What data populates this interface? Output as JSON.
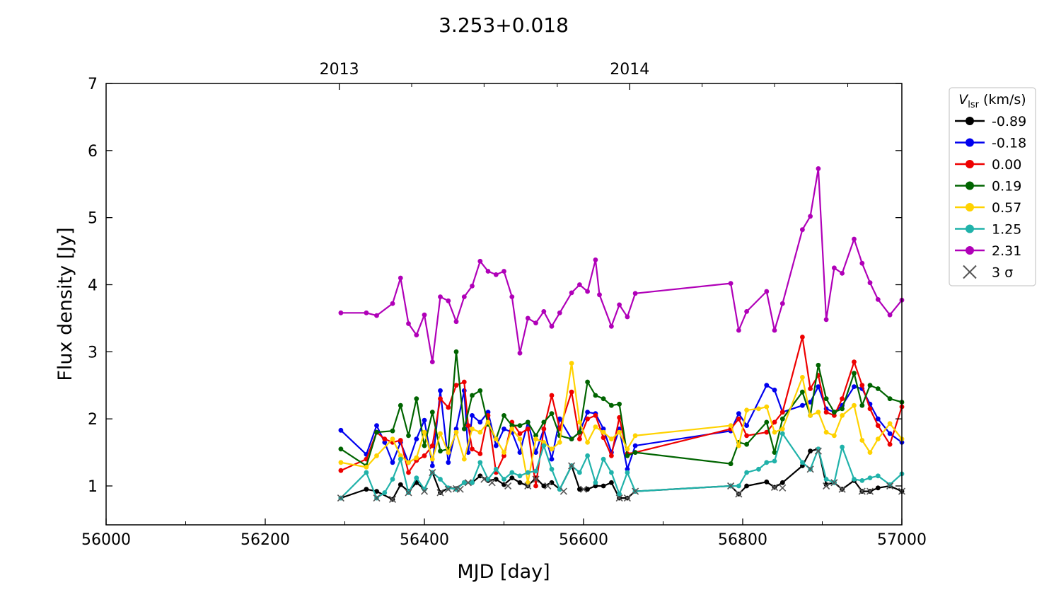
{
  "chart_data": {
    "type": "line",
    "title": "3.253+0.018",
    "xlabel": "MJD [day]",
    "ylabel": "Flux density [Jy]",
    "xlim": [
      56000,
      57000
    ],
    "ylim": [
      0.42,
      7
    ],
    "x_ticks": [
      56000,
      56200,
      56400,
      56600,
      56800,
      57000
    ],
    "y_ticks": [
      1,
      2,
      3,
      4,
      5,
      6,
      7
    ],
    "top_axis": {
      "ticks": [
        {
          "label": "2013",
          "x": 56293
        },
        {
          "label": "2014",
          "x": 56658
        }
      ]
    },
    "legend": {
      "title_main": "V",
      "title_sub": "lsr",
      "title_unit": " (km/s)",
      "position": "outside-right",
      "sigma_label": "3 σ"
    },
    "series": [
      {
        "name": "-0.89",
        "color": "#000000",
        "x": [
          56295,
          56327,
          56340,
          56360,
          56370,
          56380,
          56390,
          56400,
          56410,
          56420,
          56430,
          56440,
          56450,
          56460,
          56470,
          56480,
          56490,
          56500,
          56510,
          56520,
          56530,
          56540,
          56550,
          56560,
          56570,
          56585,
          56595,
          56605,
          56615,
          56625,
          56635,
          56645,
          56655,
          56665,
          56785,
          56795,
          56805,
          56830,
          56840,
          56850,
          56875,
          56885,
          56895,
          56905,
          56915,
          56925,
          56940,
          56950,
          56960,
          56970,
          56985,
          57000
        ],
        "y": [
          0.82,
          0.95,
          0.92,
          0.8,
          1.02,
          0.92,
          1.05,
          0.95,
          1.2,
          0.9,
          0.97,
          0.96,
          1.05,
          1.05,
          1.15,
          1.08,
          1.1,
          1.02,
          1.12,
          1.05,
          1.0,
          1.12,
          1.0,
          1.05,
          0.95,
          1.3,
          0.95,
          0.95,
          1.0,
          1.0,
          1.05,
          0.82,
          0.82,
          0.92,
          1.0,
          0.88,
          1.0,
          1.06,
          0.98,
          1.05,
          1.3,
          1.52,
          1.55,
          1.02,
          1.05,
          0.95,
          1.08,
          0.92,
          0.92,
          0.97,
          1.0,
          0.92
        ]
      },
      {
        "name": "-0.18",
        "color": "#0000ee",
        "x": [
          56295,
          56327,
          56340,
          56350,
          56360,
          56370,
          56380,
          56390,
          56400,
          56410,
          56420,
          56430,
          56440,
          56450,
          56455,
          56460,
          56470,
          56480,
          56490,
          56500,
          56510,
          56520,
          56530,
          56540,
          56550,
          56560,
          56570,
          56585,
          56595,
          56605,
          56615,
          56625,
          56635,
          56645,
          56655,
          56665,
          56785,
          56795,
          56805,
          56830,
          56840,
          56850,
          56875,
          56885,
          56895,
          56905,
          56915,
          56925,
          56940,
          56950,
          56960,
          56970,
          56985,
          57000
        ],
        "y": [
          1.83,
          1.47,
          1.9,
          1.65,
          1.35,
          1.65,
          1.35,
          1.7,
          1.98,
          1.3,
          2.42,
          1.35,
          1.85,
          2.42,
          1.5,
          2.05,
          1.95,
          2.1,
          1.6,
          1.85,
          1.8,
          1.5,
          1.95,
          1.5,
          1.85,
          1.4,
          2.0,
          1.7,
          1.8,
          2.1,
          2.08,
          1.85,
          1.5,
          1.85,
          1.25,
          1.6,
          1.82,
          2.08,
          1.9,
          2.5,
          2.43,
          2.1,
          2.2,
          2.25,
          2.48,
          2.15,
          2.1,
          2.2,
          2.48,
          2.45,
          2.22,
          2.0,
          1.78,
          1.65
        ]
      },
      {
        "name": "0.00",
        "color": "#ee0000",
        "x": [
          56295,
          56327,
          56340,
          56350,
          56360,
          56370,
          56380,
          56390,
          56400,
          56410,
          56420,
          56430,
          56440,
          56450,
          56455,
          56460,
          56470,
          56480,
          56490,
          56500,
          56510,
          56520,
          56530,
          56540,
          56550,
          56560,
          56570,
          56585,
          56595,
          56605,
          56615,
          56625,
          56635,
          56645,
          56655,
          56665,
          56785,
          56795,
          56805,
          56830,
          56840,
          56850,
          56875,
          56885,
          56895,
          56905,
          56915,
          56925,
          56940,
          56950,
          56960,
          56970,
          56985,
          57000
        ],
        "y": [
          1.23,
          1.4,
          1.8,
          1.7,
          1.65,
          1.68,
          1.2,
          1.38,
          1.45,
          1.6,
          2.3,
          2.17,
          2.5,
          2.55,
          1.9,
          1.55,
          1.48,
          2.05,
          1.2,
          1.45,
          1.95,
          1.78,
          1.85,
          1.0,
          1.85,
          2.35,
          1.85,
          2.4,
          1.7,
          2.0,
          2.05,
          1.72,
          1.45,
          2.02,
          1.48,
          1.5,
          1.85,
          2.0,
          1.75,
          1.8,
          1.95,
          2.1,
          3.22,
          2.45,
          2.65,
          2.1,
          2.05,
          2.3,
          2.85,
          2.5,
          2.15,
          1.9,
          1.62,
          2.18
        ]
      },
      {
        "name": "0.19",
        "color": "#006400",
        "x": [
          56295,
          56327,
          56340,
          56360,
          56370,
          56380,
          56390,
          56400,
          56410,
          56420,
          56430,
          56440,
          56450,
          56460,
          56470,
          56480,
          56490,
          56500,
          56510,
          56520,
          56530,
          56540,
          56550,
          56560,
          56570,
          56585,
          56595,
          56605,
          56615,
          56625,
          56635,
          56645,
          56655,
          56665,
          56785,
          56795,
          56805,
          56830,
          56840,
          56850,
          56875,
          56885,
          56895,
          56905,
          56915,
          56925,
          56940,
          56950,
          56960,
          56970,
          56985,
          57000
        ],
        "y": [
          1.55,
          1.3,
          1.8,
          1.82,
          2.2,
          1.75,
          2.3,
          1.6,
          2.1,
          1.52,
          1.55,
          3.0,
          1.85,
          2.35,
          2.42,
          1.92,
          1.7,
          2.05,
          1.9,
          1.9,
          1.95,
          1.75,
          1.95,
          2.08,
          1.75,
          1.7,
          1.8,
          2.55,
          2.35,
          2.3,
          2.2,
          2.22,
          1.45,
          1.5,
          1.33,
          1.65,
          1.62,
          1.95,
          1.5,
          2.0,
          2.4,
          2.05,
          2.8,
          2.3,
          2.1,
          2.15,
          2.68,
          2.2,
          2.5,
          2.45,
          2.3,
          2.25
        ]
      },
      {
        "name": "0.57",
        "color": "#ffd200",
        "x": [
          56295,
          56327,
          56340,
          56360,
          56370,
          56380,
          56390,
          56400,
          56410,
          56420,
          56430,
          56440,
          56450,
          56460,
          56470,
          56480,
          56490,
          56500,
          56510,
          56520,
          56530,
          56540,
          56550,
          56560,
          56570,
          56585,
          56595,
          56605,
          56615,
          56625,
          56635,
          56645,
          56655,
          56665,
          56785,
          56795,
          56805,
          56820,
          56830,
          56840,
          56850,
          56875,
          56885,
          56895,
          56905,
          56915,
          56925,
          56940,
          56950,
          56960,
          56970,
          56985,
          57000
        ],
        "y": [
          1.35,
          1.28,
          1.45,
          1.7,
          1.45,
          1.35,
          1.42,
          1.8,
          1.4,
          1.78,
          1.5,
          1.8,
          1.4,
          1.85,
          1.8,
          1.95,
          1.7,
          1.5,
          1.85,
          1.7,
          1.05,
          1.7,
          1.65,
          1.55,
          1.65,
          2.83,
          1.95,
          1.65,
          1.88,
          1.8,
          1.7,
          1.8,
          1.55,
          1.75,
          1.9,
          1.6,
          2.13,
          2.15,
          2.18,
          1.8,
          1.85,
          2.62,
          2.05,
          2.1,
          1.8,
          1.75,
          2.05,
          2.2,
          1.68,
          1.5,
          1.7,
          1.93,
          1.7
        ]
      },
      {
        "name": "1.25",
        "color": "#20b2aa",
        "x": [
          56295,
          56327,
          56340,
          56350,
          56360,
          56370,
          56380,
          56390,
          56400,
          56410,
          56420,
          56430,
          56440,
          56450,
          56460,
          56470,
          56480,
          56490,
          56500,
          56510,
          56520,
          56530,
          56540,
          56550,
          56560,
          56570,
          56585,
          56595,
          56605,
          56615,
          56625,
          56635,
          56645,
          56655,
          56665,
          56785,
          56795,
          56805,
          56820,
          56830,
          56840,
          56850,
          56875,
          56885,
          56895,
          56905,
          56915,
          56925,
          56940,
          56950,
          56960,
          56970,
          56985,
          57000
        ],
        "y": [
          0.82,
          1.2,
          0.82,
          0.9,
          1.1,
          1.4,
          0.9,
          1.12,
          0.95,
          1.2,
          1.1,
          0.97,
          0.95,
          1.05,
          1.05,
          1.35,
          1.1,
          1.25,
          1.1,
          1.2,
          1.15,
          1.2,
          1.22,
          1.6,
          1.25,
          0.95,
          1.3,
          1.2,
          1.45,
          1.05,
          1.4,
          1.2,
          0.88,
          1.2,
          0.92,
          1.0,
          1.0,
          1.2,
          1.25,
          1.35,
          1.37,
          1.78,
          1.35,
          1.25,
          1.55,
          1.1,
          1.05,
          1.58,
          1.1,
          1.08,
          1.12,
          1.15,
          1.02,
          1.18
        ]
      },
      {
        "name": "2.31",
        "color": "#b000b8",
        "x": [
          56295,
          56327,
          56340,
          56360,
          56370,
          56380,
          56390,
          56400,
          56410,
          56420,
          56430,
          56440,
          56450,
          56460,
          56470,
          56480,
          56490,
          56500,
          56510,
          56520,
          56530,
          56540,
          56550,
          56560,
          56570,
          56585,
          56595,
          56605,
          56615,
          56620,
          56635,
          56645,
          56655,
          56665,
          56785,
          56795,
          56805,
          56830,
          56840,
          56850,
          56875,
          56885,
          56895,
          56905,
          56915,
          56925,
          56940,
          56950,
          56960,
          56970,
          56985,
          57000
        ],
        "y": [
          3.58,
          3.58,
          3.54,
          3.72,
          4.1,
          3.42,
          3.25,
          3.55,
          2.85,
          3.82,
          3.76,
          3.45,
          3.82,
          3.98,
          4.35,
          4.2,
          4.15,
          4.2,
          3.82,
          2.98,
          3.5,
          3.43,
          3.6,
          3.38,
          3.58,
          3.88,
          4.0,
          3.9,
          4.37,
          3.85,
          3.38,
          3.7,
          3.52,
          3.87,
          4.02,
          3.32,
          3.6,
          3.9,
          3.32,
          3.72,
          4.82,
          5.02,
          5.73,
          3.48,
          4.25,
          4.17,
          4.68,
          4.32,
          4.03,
          3.78,
          3.55,
          3.77
        ]
      }
    ],
    "sigma_markers": {
      "x": [
        56295,
        56340,
        56360,
        56380,
        56400,
        56410,
        56420,
        56430,
        56440,
        56445,
        56455,
        56475,
        56485,
        56505,
        56530,
        56540,
        56555,
        56575,
        56585,
        56600,
        56645,
        56655,
        56665,
        56785,
        56795,
        56840,
        56850,
        56885,
        56895,
        56905,
        56915,
        56925,
        56950,
        56960,
        56985,
        57000
      ],
      "y": [
        0.82,
        0.82,
        0.8,
        0.9,
        0.92,
        1.2,
        0.9,
        0.95,
        0.96,
        0.95,
        1.05,
        1.1,
        1.05,
        1.0,
        1.0,
        1.1,
        1.0,
        0.92,
        1.3,
        0.95,
        0.82,
        0.82,
        0.92,
        1.0,
        0.88,
        0.98,
        0.97,
        1.25,
        1.52,
        1.0,
        1.05,
        0.95,
        0.92,
        0.92,
        1.0,
        0.92
      ]
    }
  }
}
